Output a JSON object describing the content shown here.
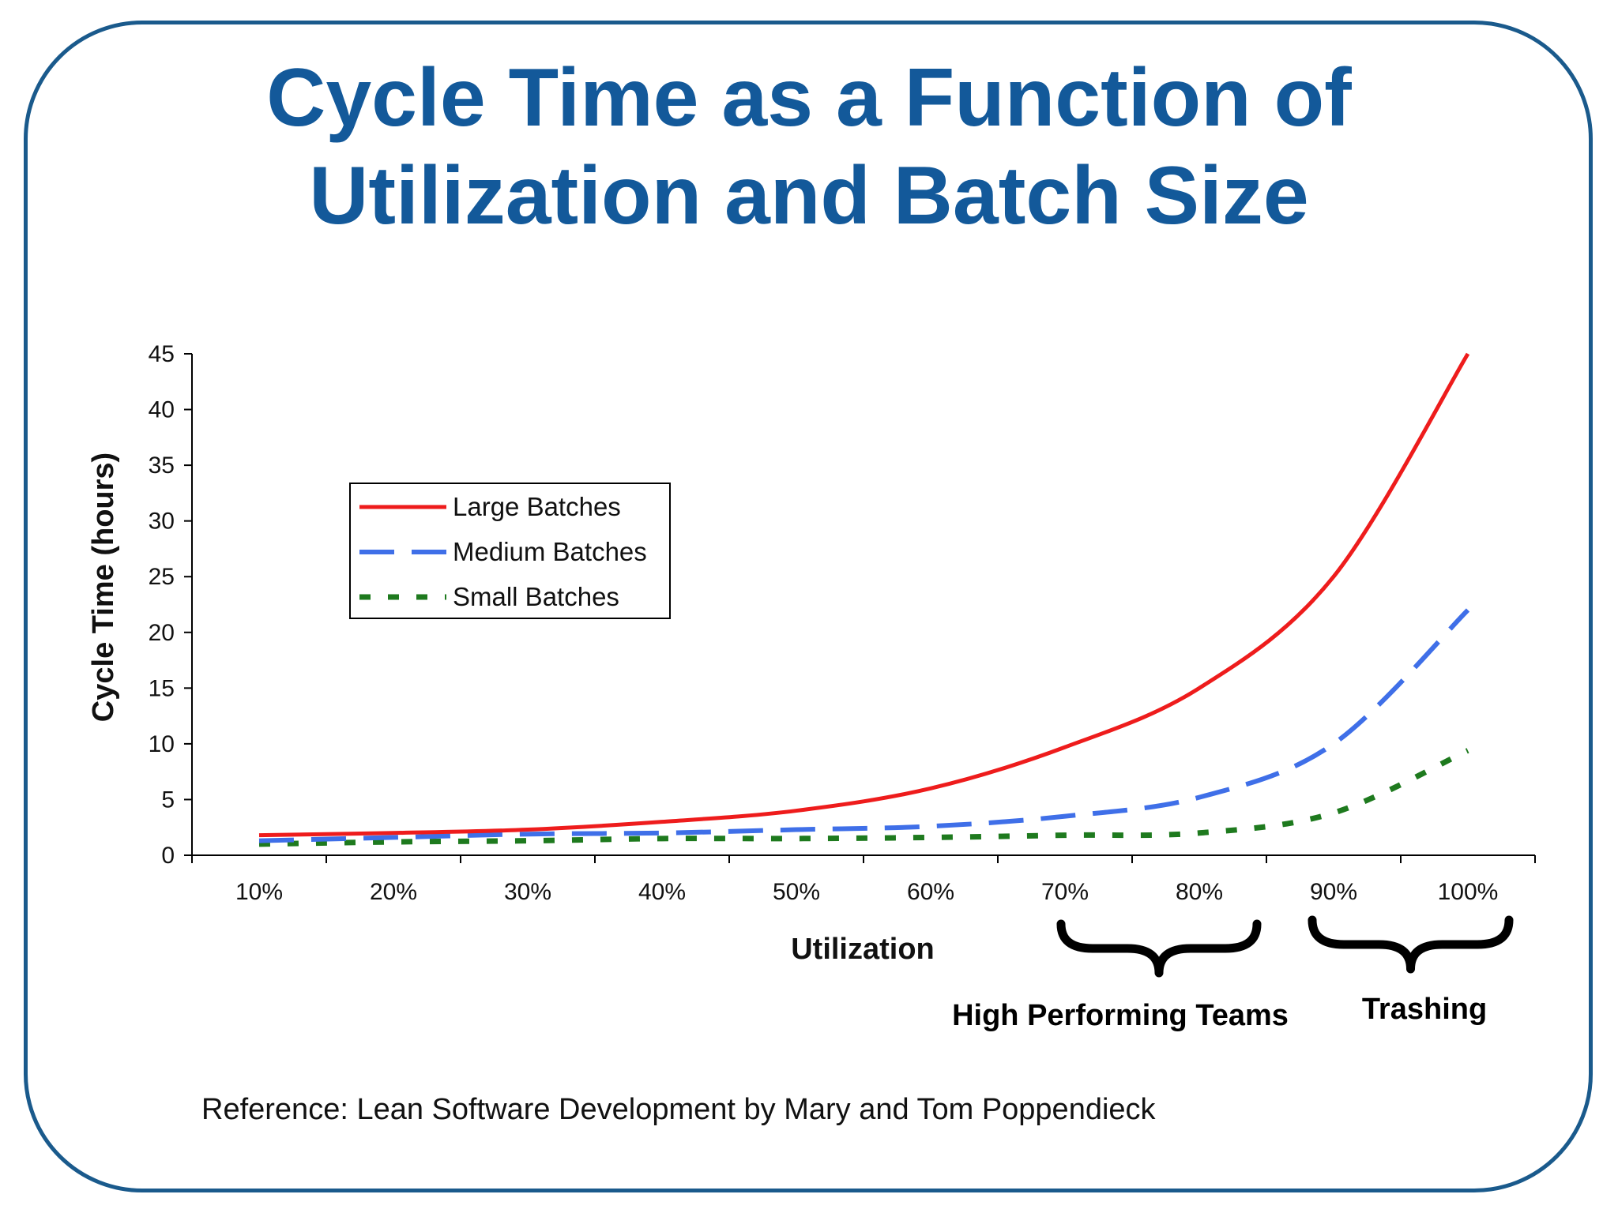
{
  "title": {
    "line1": "Cycle Time as a Function of",
    "line2": "Utilization and Batch Size"
  },
  "reference": "Reference: Lean Software Development by Mary and Tom Poppendieck",
  "colors": {
    "title": "#13599a",
    "frame": "#1a5a8c",
    "large": "#ee1c1c",
    "medium": "#3f6fe8",
    "small": "#1e7a1e"
  },
  "chart_data": {
    "type": "line",
    "xlabel": "Utilization",
    "ylabel": "Cycle Time (hours)",
    "categories": [
      "10%",
      "20%",
      "30%",
      "40%",
      "50%",
      "60%",
      "70%",
      "80%",
      "90%",
      "100%"
    ],
    "x": [
      10,
      20,
      30,
      40,
      50,
      60,
      70,
      80,
      90,
      100
    ],
    "ylim": [
      0,
      45
    ],
    "yticks": [
      0,
      5,
      10,
      15,
      20,
      25,
      30,
      35,
      40,
      45
    ],
    "legend_position": "top-left",
    "grid": false,
    "series": [
      {
        "name": "Large Batches",
        "style": "solid",
        "values": [
          1.8,
          2.0,
          2.3,
          3.0,
          4.0,
          6.0,
          9.7,
          15.0,
          25.0,
          45.0
        ]
      },
      {
        "name": "Medium Batches",
        "style": "dashed",
        "values": [
          1.3,
          1.6,
          1.9,
          2.0,
          2.3,
          2.6,
          3.5,
          5.2,
          10.0,
          22.0
        ]
      },
      {
        "name": "Small Batches",
        "style": "dotted",
        "values": [
          1.0,
          1.2,
          1.3,
          1.5,
          1.5,
          1.6,
          1.8,
          2.0,
          3.8,
          9.4
        ]
      }
    ],
    "annotations": [
      {
        "label": "High Performing Teams",
        "from": "70%",
        "to": "80%"
      },
      {
        "label": "Trashing",
        "from": "90%",
        "to": "100%"
      }
    ]
  }
}
